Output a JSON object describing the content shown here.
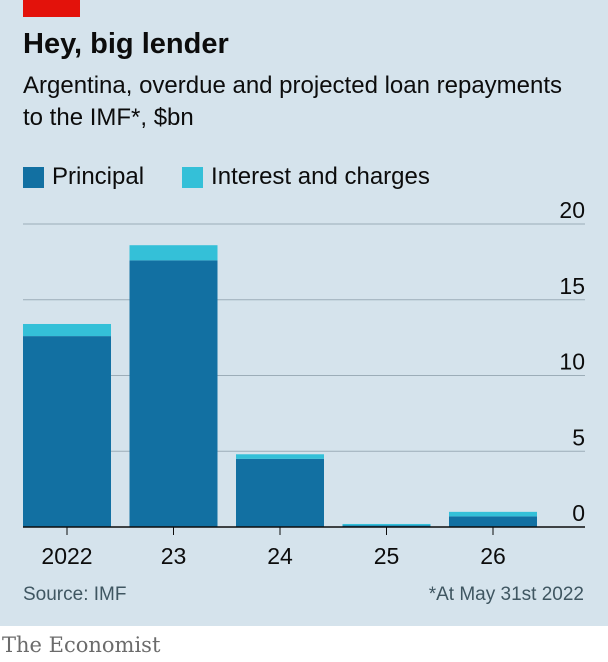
{
  "title": "Hey, big lender",
  "subtitle": "Argentina, overdue and projected loan repayments to the IMF*, $bn",
  "source": "Source: IMF",
  "footnote": "*At May 31st 2022",
  "brand": "The Economist",
  "colors": {
    "background": "#d5e3ec",
    "principal": "#1270a2",
    "interest": "#34c0d8",
    "grid": "#9cadb8",
    "accent": "#e3120b"
  },
  "chart_data": {
    "type": "bar",
    "stacked": true,
    "categories": [
      "2022",
      "23",
      "24",
      "25",
      "26"
    ],
    "series": [
      {
        "name": "Principal",
        "values": [
          12.6,
          17.6,
          4.5,
          0.1,
          0.7
        ]
      },
      {
        "name": "Interest and charges",
        "values": [
          0.8,
          1.0,
          0.3,
          0.1,
          0.3
        ]
      }
    ],
    "ylim": [
      0,
      20
    ],
    "yticks": [
      0,
      5,
      10,
      15,
      20
    ],
    "ytick_labels": [
      "0",
      "5",
      "10",
      "15",
      "20"
    ],
    "grid": true,
    "yaxis_position": "right",
    "legend_position": "top-left"
  }
}
